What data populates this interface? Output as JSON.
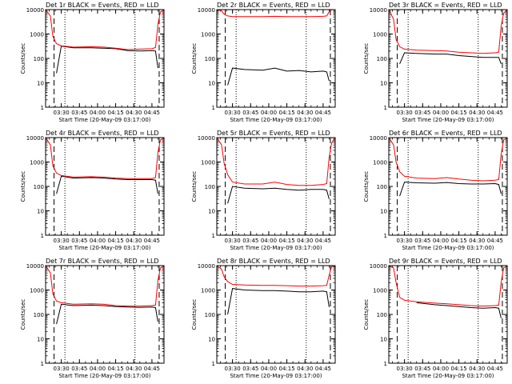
{
  "figure": {
    "colors": {
      "events": "#000000",
      "lld": "#ff0000",
      "axes": "#000000",
      "background": "#ffffff"
    }
  },
  "chart_data": [
    {
      "type": "line",
      "title": "Det 1r BLACK = Events, RED = LLD",
      "xlabel": "Start Time (20-May-09 03:17:00)",
      "ylabel": "Counts/sec",
      "x_tick_labels": [
        "03:30",
        "03:45",
        "04:00",
        "04:15",
        "04:30",
        "04:45"
      ],
      "y_tick_labels": [
        "1",
        "10",
        "100",
        "1000",
        "10000"
      ],
      "xlim": [
        "03:17",
        "04:55"
      ],
      "ylim": [
        1,
        10000
      ],
      "yscale": "log",
      "dashed_lines": [
        "03:24",
        "04:51"
      ],
      "dotted_lines": [
        "03:33",
        "04:31"
      ],
      "x": [
        "03:17",
        "03:21",
        "03:23",
        "03:26",
        "03:30",
        "03:40",
        "03:55",
        "04:05",
        "04:15",
        "04:25",
        "04:35",
        "04:45",
        "04:48",
        "04:50",
        "04:52",
        "04:55"
      ],
      "series": [
        {
          "name": "Events",
          "values": [
            null,
            null,
            null,
            25,
            320,
            270,
            270,
            260,
            250,
            210,
            200,
            210,
            200,
            40,
            null,
            null
          ]
        },
        {
          "name": "LLD",
          "values": [
            10000,
            5500,
            800,
            400,
            330,
            290,
            300,
            290,
            260,
            230,
            240,
            250,
            280,
            2500,
            8000,
            10000
          ]
        }
      ]
    },
    {
      "type": "line",
      "title": "Det 2r BLACK = Events, RED = LLD",
      "xlabel": "Start Time (20-May-09 03:17:00)",
      "ylabel": "Counts/sec",
      "x_tick_labels": [
        "03:30",
        "03:45",
        "04:00",
        "04:15",
        "04:30",
        "04:45"
      ],
      "y_tick_labels": [
        "1",
        "10",
        "100",
        "1000",
        "10000"
      ],
      "xlim": [
        "03:17",
        "04:55"
      ],
      "ylim": [
        1,
        10000
      ],
      "yscale": "log",
      "dashed_lines": [
        "03:24",
        "04:51"
      ],
      "dotted_lines": [
        "03:33",
        "04:31"
      ],
      "x": [
        "03:17",
        "03:21",
        "03:23",
        "03:26",
        "03:30",
        "03:40",
        "03:55",
        "04:05",
        "04:15",
        "04:25",
        "04:35",
        "04:45",
        "04:48",
        "04:50",
        "04:52",
        "04:55"
      ],
      "series": [
        {
          "name": "Events",
          "values": [
            null,
            null,
            null,
            8,
            40,
            35,
            33,
            40,
            30,
            32,
            28,
            30,
            28,
            12,
            null,
            null
          ]
        },
        {
          "name": "LLD",
          "values": [
            10000,
            9000,
            6500,
            5500,
            5200,
            5200,
            5200,
            5300,
            5200,
            5200,
            5200,
            5300,
            5500,
            8000,
            10000,
            10000
          ]
        }
      ]
    },
    {
      "type": "line",
      "title": "Det 3r BLACK = Events, RED = LLD",
      "xlabel": "Start Time (20-May-09 03:17:00)",
      "ylabel": "Counts/sec",
      "x_tick_labels": [
        "03:30",
        "03:45",
        "04:00",
        "04:15",
        "04:30",
        "04:45"
      ],
      "y_tick_labels": [
        "1",
        "10",
        "100",
        "1000",
        "10000"
      ],
      "xlim": [
        "03:17",
        "04:55"
      ],
      "ylim": [
        1,
        10000
      ],
      "yscale": "log",
      "dashed_lines": [
        "03:24",
        "04:51"
      ],
      "dotted_lines": [
        "03:33",
        "04:31"
      ],
      "x": [
        "03:17",
        "03:21",
        "03:23",
        "03:26",
        "03:30",
        "03:40",
        "03:55",
        "04:05",
        "04:15",
        "04:25",
        "04:35",
        "04:45",
        "04:48",
        "04:50",
        "04:52",
        "04:55"
      ],
      "series": [
        {
          "name": "Events",
          "values": [
            null,
            null,
            null,
            60,
            170,
            160,
            150,
            150,
            130,
            120,
            110,
            110,
            110,
            60,
            null,
            null
          ]
        },
        {
          "name": "LLD",
          "values": [
            10000,
            4000,
            600,
            300,
            240,
            220,
            210,
            200,
            180,
            170,
            160,
            170,
            180,
            2000,
            7000,
            10000
          ]
        }
      ]
    },
    {
      "type": "line",
      "title": "Det 4r BLACK = Events, RED = LLD",
      "xlabel": "Start Time (20-May-09 03:17:00)",
      "ylabel": "Counts/sec",
      "x_tick_labels": [
        "03:30",
        "03:45",
        "04:00",
        "04:15",
        "04:30",
        "04:45"
      ],
      "y_tick_labels": [
        "1",
        "10",
        "100",
        "1000",
        "10000"
      ],
      "xlim": [
        "03:17",
        "04:55"
      ],
      "ylim": [
        1,
        10000
      ],
      "yscale": "log",
      "dashed_lines": [
        "03:24",
        "04:51"
      ],
      "dotted_lines": [
        "03:33",
        "04:31"
      ],
      "x": [
        "03:17",
        "03:21",
        "03:23",
        "03:26",
        "03:30",
        "03:40",
        "03:55",
        "04:05",
        "04:15",
        "04:25",
        "04:35",
        "04:45",
        "04:48",
        "04:50",
        "04:52",
        "04:55"
      ],
      "series": [
        {
          "name": "Events",
          "values": [
            null,
            null,
            null,
            50,
            260,
            220,
            230,
            220,
            200,
            190,
            190,
            190,
            180,
            50,
            null,
            null
          ]
        },
        {
          "name": "LLD",
          "values": [
            10000,
            5000,
            700,
            350,
            280,
            240,
            250,
            240,
            220,
            210,
            210,
            210,
            230,
            2500,
            8000,
            10000
          ]
        }
      ]
    },
    {
      "type": "line",
      "title": "Det 5r BLACK = Events, RED = LLD",
      "xlabel": "Start Time (20-May-09 03:17:00)",
      "ylabel": "Counts/sec",
      "x_tick_labels": [
        "03:30",
        "03:45",
        "04:00",
        "04:15",
        "04:30",
        "04:45"
      ],
      "y_tick_labels": [
        "1",
        "10",
        "100",
        "1000",
        "10000"
      ],
      "xlim": [
        "03:17",
        "04:55"
      ],
      "ylim": [
        1,
        10000
      ],
      "yscale": "log",
      "dashed_lines": [
        "03:24",
        "04:51"
      ],
      "dotted_lines": [
        "03:33",
        "04:31"
      ],
      "x": [
        "03:17",
        "03:21",
        "03:23",
        "03:26",
        "03:30",
        "03:40",
        "03:55",
        "04:05",
        "04:15",
        "04:25",
        "04:35",
        "04:45",
        "04:48",
        "04:50",
        "04:52",
        "04:55"
      ],
      "series": [
        {
          "name": "Events",
          "values": [
            null,
            null,
            null,
            20,
            100,
            85,
            80,
            85,
            75,
            70,
            75,
            75,
            70,
            30,
            null,
            null
          ]
        },
        {
          "name": "LLD",
          "values": [
            10000,
            5000,
            900,
            300,
            150,
            125,
            125,
            150,
            120,
            110,
            110,
            120,
            130,
            1500,
            6000,
            10000
          ]
        }
      ]
    },
    {
      "type": "line",
      "title": "Det 6r BLACK = Events, RED = LLD",
      "xlabel": "Start Time (20-May-09 03:17:00)",
      "ylabel": "Counts/sec",
      "x_tick_labels": [
        "03:30",
        "03:45",
        "04:00",
        "04:15",
        "04:30",
        "04:45"
      ],
      "y_tick_labels": [
        "1",
        "10",
        "100",
        "1000",
        "10000"
      ],
      "xlim": [
        "03:17",
        "04:55"
      ],
      "ylim": [
        1,
        10000
      ],
      "yscale": "log",
      "dashed_lines": [
        "03:24",
        "04:51"
      ],
      "dotted_lines": [
        "03:33",
        "04:31"
      ],
      "x": [
        "03:17",
        "03:21",
        "03:23",
        "03:26",
        "03:30",
        "03:40",
        "03:55",
        "04:05",
        "04:15",
        "04:25",
        "04:35",
        "04:45",
        "04:48",
        "04:50",
        "04:52",
        "04:55"
      ],
      "series": [
        {
          "name": "Events",
          "values": [
            null,
            null,
            null,
            40,
            150,
            140,
            135,
            145,
            130,
            125,
            125,
            130,
            120,
            50,
            null,
            null
          ]
        },
        {
          "name": "LLD",
          "values": [
            10000,
            5000,
            1000,
            400,
            260,
            220,
            210,
            230,
            200,
            180,
            170,
            180,
            190,
            2000,
            8000,
            10000
          ]
        }
      ]
    },
    {
      "type": "line",
      "title": "Det 7r BLACK = Events, RED = LLD",
      "xlabel": "Start Time (20-May-09 03:17:00)",
      "ylabel": "Counts/sec",
      "x_tick_labels": [
        "03:30",
        "03:45",
        "04:00",
        "04:15",
        "04:30",
        "04:45"
      ],
      "y_tick_labels": [
        "1",
        "10",
        "100",
        "1000",
        "10000"
      ],
      "xlim": [
        "03:17",
        "04:55"
      ],
      "ylim": [
        1,
        10000
      ],
      "yscale": "log",
      "dashed_lines": [
        "03:24",
        "04:51"
      ],
      "dotted_lines": [
        "03:33",
        "04:31"
      ],
      "x": [
        "03:17",
        "03:21",
        "03:23",
        "03:26",
        "03:30",
        "03:40",
        "03:55",
        "04:05",
        "04:15",
        "04:25",
        "04:35",
        "04:45",
        "04:48",
        "04:50",
        "04:52",
        "04:55"
      ],
      "series": [
        {
          "name": "Events",
          "values": [
            null,
            null,
            null,
            40,
            260,
            230,
            240,
            230,
            210,
            200,
            195,
            200,
            190,
            50,
            null,
            null
          ]
        },
        {
          "name": "LLD",
          "values": [
            10000,
            5000,
            700,
            350,
            300,
            260,
            270,
            260,
            230,
            220,
            220,
            230,
            240,
            2500,
            8000,
            10000
          ]
        }
      ]
    },
    {
      "type": "line",
      "title": "Det 8r BLACK = Events, RED = LLD",
      "xlabel": "Start Time (20-May-09 03:17:00)",
      "ylabel": "Counts/sec",
      "x_tick_labels": [
        "03:30",
        "03:45",
        "04:00",
        "04:15",
        "04:30",
        "04:45"
      ],
      "y_tick_labels": [
        "1",
        "10",
        "100",
        "1000",
        "10000"
      ],
      "xlim": [
        "03:17",
        "04:55"
      ],
      "ylim": [
        1,
        10000
      ],
      "yscale": "log",
      "dashed_lines": [
        "03:24",
        "04:51"
      ],
      "dotted_lines": [
        "03:33",
        "04:31"
      ],
      "x": [
        "03:17",
        "03:21",
        "03:23",
        "03:26",
        "03:30",
        "03:40",
        "03:55",
        "04:05",
        "04:15",
        "04:25",
        "04:35",
        "04:45",
        "04:48",
        "04:50",
        "04:52",
        "04:55"
      ],
      "series": [
        {
          "name": "Events",
          "values": [
            null,
            null,
            null,
            100,
            1150,
            1000,
            950,
            950,
            900,
            850,
            850,
            900,
            850,
            200,
            null,
            null
          ]
        },
        {
          "name": "LLD",
          "values": [
            10000,
            7000,
            3500,
            2200,
            1700,
            1600,
            1550,
            1550,
            1500,
            1450,
            1450,
            1500,
            1550,
            4000,
            9000,
            10000
          ]
        }
      ]
    },
    {
      "type": "line",
      "title": "Det 9r BLACK = Events, RED = LLD",
      "xlabel": "Start Time (20-May-09 03:17:00)",
      "ylabel": "Counts/sec",
      "x_tick_labels": [
        "03:30",
        "03:45",
        "04:00",
        "04:15",
        "04:30",
        "04:45"
      ],
      "y_tick_labels": [
        "1",
        "10",
        "100",
        "1000",
        "10000"
      ],
      "xlim": [
        "03:17",
        "04:55"
      ],
      "ylim": [
        1,
        10000
      ],
      "yscale": "log",
      "dashed_lines": [
        "03:24",
        "04:51"
      ],
      "dotted_lines": [
        "03:33",
        "04:31"
      ],
      "x": [
        "03:17",
        "03:21",
        "03:23",
        "03:26",
        "03:30",
        "03:40",
        "03:55",
        "04:05",
        "04:15",
        "04:25",
        "04:35",
        "04:45",
        "04:48",
        "04:50",
        "04:52",
        "04:55"
      ],
      "series": [
        {
          "name": "Events",
          "values": [
            null,
            null,
            null,
            null,
            null,
            300,
            250,
            230,
            210,
            190,
            180,
            190,
            180,
            70,
            null,
            null
          ]
        },
        {
          "name": "LLD",
          "values": [
            10000,
            8000,
            2000,
            500,
            380,
            330,
            290,
            270,
            250,
            230,
            220,
            230,
            240,
            2000,
            8000,
            10000
          ]
        }
      ]
    }
  ]
}
